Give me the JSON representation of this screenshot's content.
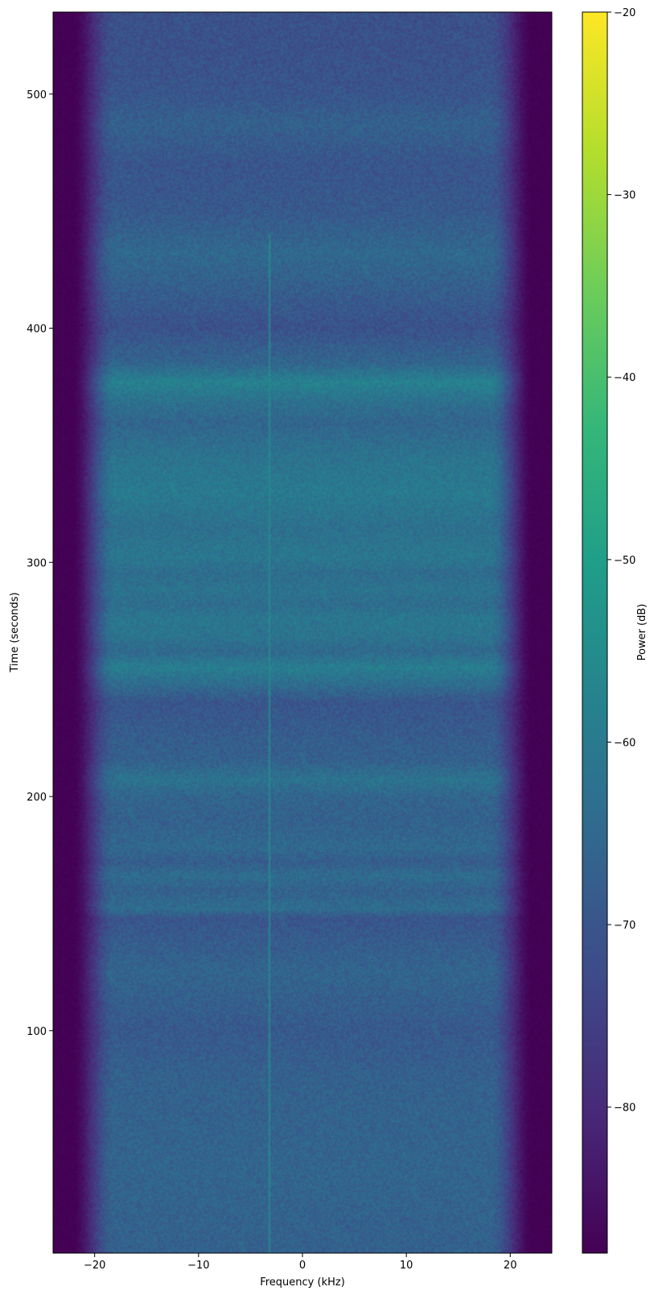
{
  "chart_data": {
    "type": "heatmap",
    "title": "",
    "xlabel": "Frequency (kHz)",
    "ylabel": "Time (seconds)",
    "xlim": [
      -24,
      24
    ],
    "ylim": [
      5,
      535
    ],
    "x_ticks": [
      -20,
      -10,
      0,
      10,
      20
    ],
    "x_tick_labels": [
      "−20",
      "−10",
      "0",
      "10",
      "20"
    ],
    "y_ticks": [
      100,
      200,
      300,
      400,
      500
    ],
    "y_tick_labels": [
      "100",
      "200",
      "300",
      "400",
      "500"
    ],
    "colormap": "viridis",
    "colorbar": {
      "label": "Power (dB)",
      "range": [
        -88,
        -20
      ],
      "ticks": [
        -80,
        -70,
        -60,
        -50,
        -40,
        -30,
        -20
      ],
      "tick_labels": [
        "−80",
        "−70",
        "−60",
        "−50",
        "−40",
        "−30",
        "−20"
      ]
    },
    "passband_khz": [
      -21,
      21
    ],
    "floor_db": -88,
    "carrier": {
      "freq_khz": -3.2,
      "time_range": [
        5,
        440
      ],
      "power_db": -56
    },
    "time_profile": [
      {
        "t": 5,
        "db": -67
      },
      {
        "t": 40,
        "db": -66
      },
      {
        "t": 80,
        "db": -67
      },
      {
        "t": 100,
        "db": -69
      },
      {
        "t": 125,
        "db": -66
      },
      {
        "t": 148,
        "db": -70
      },
      {
        "t": 152,
        "db": -64
      },
      {
        "t": 160,
        "db": -67
      },
      {
        "t": 166,
        "db": -64
      },
      {
        "t": 172,
        "db": -68
      },
      {
        "t": 178,
        "db": -65
      },
      {
        "t": 190,
        "db": -67
      },
      {
        "t": 200,
        "db": -66
      },
      {
        "t": 207,
        "db": -62
      },
      {
        "t": 215,
        "db": -67
      },
      {
        "t": 225,
        "db": -68
      },
      {
        "t": 240,
        "db": -70
      },
      {
        "t": 248,
        "db": -64
      },
      {
        "t": 255,
        "db": -59
      },
      {
        "t": 262,
        "db": -65
      },
      {
        "t": 268,
        "db": -62
      },
      {
        "t": 276,
        "db": -61
      },
      {
        "t": 282,
        "db": -64
      },
      {
        "t": 288,
        "db": -62
      },
      {
        "t": 295,
        "db": -64
      },
      {
        "t": 302,
        "db": -61
      },
      {
        "t": 315,
        "db": -63
      },
      {
        "t": 330,
        "db": -60
      },
      {
        "t": 345,
        "db": -62
      },
      {
        "t": 360,
        "db": -66
      },
      {
        "t": 368,
        "db": -63
      },
      {
        "t": 377,
        "db": -58
      },
      {
        "t": 385,
        "db": -66
      },
      {
        "t": 392,
        "db": -68
      },
      {
        "t": 400,
        "db": -71
      },
      {
        "t": 420,
        "db": -67
      },
      {
        "t": 432,
        "db": -65
      },
      {
        "t": 450,
        "db": -69
      },
      {
        "t": 470,
        "db": -70
      },
      {
        "t": 487,
        "db": -67
      },
      {
        "t": 500,
        "db": -70
      },
      {
        "t": 520,
        "db": -71
      },
      {
        "t": 535,
        "db": -71
      }
    ]
  }
}
